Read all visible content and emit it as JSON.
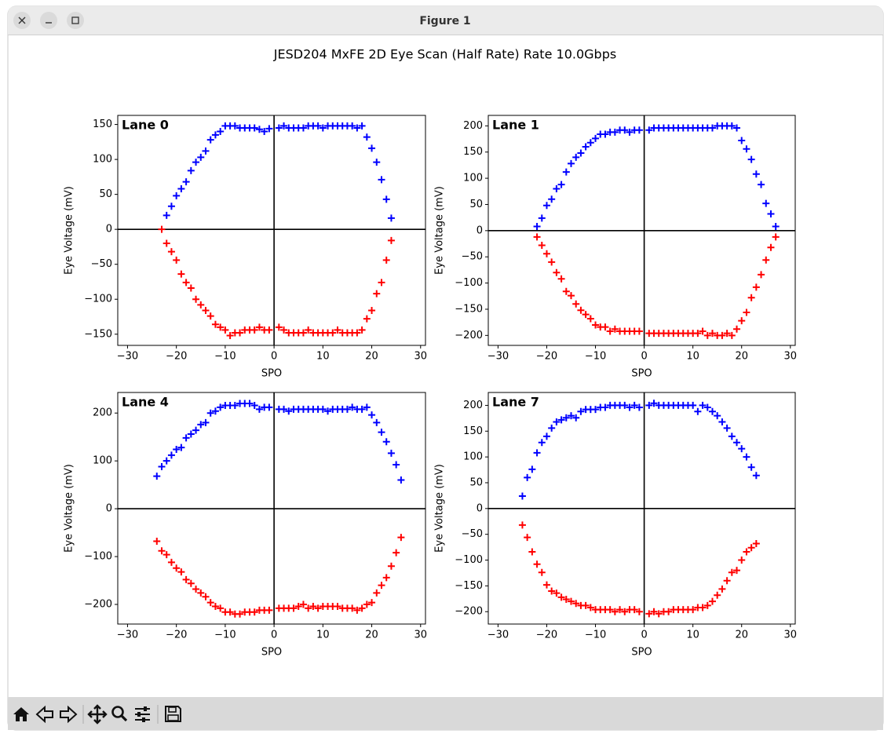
{
  "window": {
    "title": "Figure 1"
  },
  "title": "JESD204 MxFE 2D Eye Scan (Half Rate) Rate 10.0Gbps",
  "chart_data": [
    {
      "type": "scatter",
      "title": "Lane 0",
      "xlabel": "SPO",
      "ylabel": "Eye Voltage (mV)",
      "marker": "+",
      "zero_lines": true,
      "xlim": [
        -32,
        31
      ],
      "ylim": [
        -166,
        163
      ],
      "xticks": [
        {
          "value": -30,
          "label": "−30"
        },
        {
          "value": -20,
          "label": "−20"
        },
        {
          "value": -10,
          "label": "−10"
        },
        0,
        10,
        20,
        30
      ],
      "yticks": [
        {
          "value": -150,
          "label": "−150"
        },
        {
          "value": -100,
          "label": "−100"
        },
        {
          "value": -50,
          "label": "−50"
        },
        0,
        50,
        100,
        150
      ],
      "series": [
        {
          "color": "#0000ff",
          "x": [
            -22,
            -21,
            -20,
            -19,
            -18,
            -17,
            -16,
            -15,
            -14,
            -13,
            -12,
            -11,
            -10,
            -9,
            -8,
            -7,
            -6,
            -5,
            -4,
            -3,
            -2,
            -1,
            1,
            2,
            3,
            4,
            5,
            6,
            7,
            8,
            9,
            10,
            11,
            12,
            13,
            14,
            15,
            16,
            17,
            18,
            19,
            20,
            21,
            22,
            23,
            24
          ],
          "values": [
            20,
            33,
            48,
            58,
            68,
            84,
            96,
            103,
            112,
            128,
            135,
            140,
            148,
            148,
            148,
            145,
            145,
            145,
            145,
            143,
            140,
            144,
            145,
            148,
            145,
            145,
            145,
            145,
            148,
            148,
            148,
            145,
            148,
            148,
            148,
            148,
            148,
            148,
            145,
            148,
            132,
            116,
            96,
            71,
            43,
            16
          ]
        },
        {
          "color": "#ff0000",
          "x": [
            -23,
            -22,
            -21,
            -20,
            -19,
            -18,
            -17,
            -16,
            -15,
            -14,
            -13,
            -12,
            -11,
            -10,
            -9,
            -8,
            -7,
            -6,
            -5,
            -4,
            -3,
            -2,
            -1,
            1,
            2,
            3,
            4,
            5,
            6,
            7,
            8,
            9,
            10,
            11,
            12,
            13,
            14,
            15,
            16,
            17,
            18,
            19,
            20,
            21,
            22,
            23,
            24
          ],
          "values": [
            0,
            -20,
            -32,
            -44,
            -64,
            -76,
            -84,
            -100,
            -108,
            -116,
            -124,
            -136,
            -140,
            -144,
            -152,
            -148,
            -148,
            -144,
            -144,
            -144,
            -140,
            -144,
            -144,
            -140,
            -144,
            -148,
            -148,
            -148,
            -148,
            -144,
            -148,
            -148,
            -148,
            -148,
            -148,
            -144,
            -148,
            -148,
            -148,
            -148,
            -144,
            -128,
            -116,
            -92,
            -76,
            -44,
            -16
          ]
        }
      ]
    },
    {
      "type": "scatter",
      "title": "Lane 1",
      "xlabel": "SPO",
      "ylabel": "Eye Voltage (mV)",
      "marker": "+",
      "zero_lines": true,
      "xlim": [
        -32,
        31
      ],
      "ylim": [
        -219,
        220
      ],
      "xticks": [
        {
          "value": -30,
          "label": "−30"
        },
        {
          "value": -20,
          "label": "−20"
        },
        {
          "value": -10,
          "label": "−10"
        },
        0,
        10,
        20,
        30
      ],
      "yticks": [
        {
          "value": -200,
          "label": "−200"
        },
        {
          "value": -150,
          "label": "−150"
        },
        {
          "value": -100,
          "label": "−100"
        },
        {
          "value": -50,
          "label": "−50"
        },
        0,
        50,
        100,
        150,
        200
      ],
      "series": [
        {
          "color": "#0000ff",
          "x": [
            -22,
            -21,
            -20,
            -19,
            -18,
            -17,
            -16,
            -15,
            -14,
            -13,
            -12,
            -11,
            -10,
            -9,
            -8,
            -7,
            -6,
            -5,
            -4,
            -3,
            -2,
            -1,
            1,
            2,
            3,
            4,
            5,
            6,
            7,
            8,
            9,
            10,
            11,
            12,
            13,
            14,
            15,
            16,
            17,
            18,
            19,
            20,
            21,
            22,
            23,
            24,
            25,
            26,
            27
          ],
          "values": [
            8,
            24,
            48,
            60,
            80,
            88,
            112,
            128,
            140,
            148,
            160,
            168,
            176,
            184,
            184,
            188,
            188,
            192,
            192,
            188,
            192,
            192,
            192,
            196,
            196,
            196,
            196,
            196,
            196,
            196,
            196,
            196,
            196,
            196,
            196,
            196,
            200,
            200,
            200,
            200,
            196,
            172,
            156,
            136,
            108,
            88,
            52,
            32,
            8
          ]
        },
        {
          "color": "#ff0000",
          "x": [
            -22,
            -21,
            -20,
            -19,
            -18,
            -17,
            -16,
            -15,
            -14,
            -13,
            -12,
            -11,
            -10,
            -9,
            -8,
            -7,
            -6,
            -5,
            -4,
            -3,
            -2,
            -1,
            1,
            2,
            3,
            4,
            5,
            6,
            7,
            8,
            9,
            10,
            11,
            12,
            13,
            14,
            15,
            16,
            17,
            18,
            19,
            20,
            21,
            22,
            23,
            24,
            25,
            26,
            27
          ],
          "values": [
            -12,
            -28,
            -44,
            -60,
            -80,
            -92,
            -116,
            -124,
            -140,
            -152,
            -160,
            -168,
            -180,
            -184,
            -184,
            -192,
            -188,
            -192,
            -192,
            -192,
            -192,
            -192,
            -196,
            -196,
            -196,
            -196,
            -196,
            -196,
            -196,
            -196,
            -196,
            -196,
            -196,
            -192,
            -200,
            -196,
            -200,
            -200,
            -196,
            -200,
            -188,
            -172,
            -156,
            -128,
            -108,
            -84,
            -56,
            -32,
            -12
          ]
        }
      ]
    },
    {
      "type": "scatter",
      "title": "Lane 4",
      "xlabel": "SPO",
      "ylabel": "Eye Voltage (mV)",
      "marker": "+",
      "zero_lines": true,
      "xlim": [
        -32,
        31
      ],
      "ylim": [
        -241,
        243
      ],
      "xticks": [
        {
          "value": -30,
          "label": "−30"
        },
        {
          "value": -20,
          "label": "−20"
        },
        {
          "value": -10,
          "label": "−10"
        },
        0,
        10,
        20,
        30
      ],
      "yticks": [
        {
          "value": -200,
          "label": "−200"
        },
        {
          "value": -100,
          "label": "−100"
        },
        0,
        100,
        200
      ],
      "series": [
        {
          "color": "#0000ff",
          "x": [
            -24,
            -23,
            -22,
            -21,
            -20,
            -19,
            -18,
            -17,
            -16,
            -15,
            -14,
            -13,
            -12,
            -11,
            -10,
            -9,
            -8,
            -7,
            -6,
            -5,
            -4,
            -3,
            -2,
            -1,
            1,
            2,
            3,
            4,
            5,
            6,
            7,
            8,
            9,
            10,
            11,
            12,
            13,
            14,
            15,
            16,
            17,
            18,
            19,
            20,
            21,
            22,
            23,
            24,
            25,
            26
          ],
          "values": [
            68,
            88,
            100,
            112,
            124,
            128,
            148,
            156,
            164,
            176,
            180,
            200,
            204,
            212,
            216,
            216,
            216,
            220,
            220,
            220,
            216,
            208,
            212,
            212,
            208,
            208,
            204,
            208,
            208,
            208,
            208,
            208,
            208,
            208,
            204,
            208,
            208,
            208,
            208,
            212,
            208,
            208,
            212,
            196,
            180,
            160,
            140,
            116,
            92,
            60
          ]
        },
        {
          "color": "#ff0000",
          "x": [
            -24,
            -23,
            -22,
            -21,
            -20,
            -19,
            -18,
            -17,
            -16,
            -15,
            -14,
            -13,
            -12,
            -11,
            -10,
            -9,
            -8,
            -7,
            -6,
            -5,
            -4,
            -3,
            -2,
            -1,
            1,
            2,
            3,
            4,
            5,
            6,
            7,
            8,
            9,
            10,
            11,
            12,
            13,
            14,
            15,
            16,
            17,
            18,
            19,
            20,
            21,
            22,
            23,
            24,
            25,
            26
          ],
          "values": [
            -68,
            -88,
            -96,
            -112,
            -124,
            -132,
            -148,
            -156,
            -168,
            -176,
            -184,
            -196,
            -204,
            -208,
            -216,
            -216,
            -220,
            -220,
            -216,
            -216,
            -216,
            -212,
            -212,
            -212,
            -208,
            -208,
            -208,
            -208,
            -204,
            -200,
            -208,
            -204,
            -208,
            -204,
            -204,
            -204,
            -204,
            -208,
            -208,
            -208,
            -212,
            -208,
            -200,
            -196,
            -176,
            -160,
            -144,
            -120,
            -92,
            -60
          ]
        }
      ]
    },
    {
      "type": "scatter",
      "title": "Lane 7",
      "xlabel": "SPO",
      "ylabel": "Eye Voltage (mV)",
      "marker": "+",
      "zero_lines": true,
      "xlim": [
        -32,
        31
      ],
      "ylim": [
        -224,
        225
      ],
      "xticks": [
        {
          "value": -30,
          "label": "−30"
        },
        {
          "value": -20,
          "label": "−20"
        },
        {
          "value": -10,
          "label": "−10"
        },
        0,
        10,
        20,
        30
      ],
      "yticks": [
        {
          "value": -200,
          "label": "−200"
        },
        {
          "value": -150,
          "label": "−150"
        },
        {
          "value": -100,
          "label": "−100"
        },
        {
          "value": -50,
          "label": "−50"
        },
        0,
        50,
        100,
        150,
        200
      ],
      "series": [
        {
          "color": "#0000ff",
          "x": [
            -25,
            -24,
            -23,
            -22,
            -21,
            -20,
            -19,
            -18,
            -17,
            -16,
            -15,
            -14,
            -13,
            -12,
            -11,
            -10,
            -9,
            -8,
            -7,
            -6,
            -5,
            -4,
            -3,
            -2,
            -1,
            1,
            2,
            3,
            4,
            5,
            6,
            7,
            8,
            9,
            10,
            11,
            12,
            13,
            14,
            15,
            16,
            17,
            18,
            19,
            20,
            21,
            22,
            23
          ],
          "values": [
            24,
            60,
            76,
            108,
            128,
            140,
            156,
            168,
            172,
            176,
            180,
            176,
            188,
            192,
            192,
            192,
            196,
            196,
            200,
            200,
            200,
            200,
            196,
            200,
            196,
            200,
            204,
            200,
            200,
            200,
            200,
            200,
            200,
            200,
            200,
            188,
            200,
            196,
            188,
            180,
            168,
            156,
            140,
            128,
            116,
            100,
            80,
            64
          ]
        },
        {
          "color": "#ff0000",
          "x": [
            -25,
            -24,
            -23,
            -22,
            -21,
            -20,
            -19,
            -18,
            -17,
            -16,
            -15,
            -14,
            -13,
            -12,
            -11,
            -10,
            -9,
            -8,
            -7,
            -6,
            -5,
            -4,
            -3,
            -2,
            -1,
            1,
            2,
            3,
            4,
            5,
            6,
            7,
            8,
            9,
            10,
            11,
            12,
            13,
            14,
            15,
            16,
            17,
            18,
            19,
            20,
            21,
            22,
            23
          ],
          "values": [
            -32,
            -56,
            -84,
            -108,
            -124,
            -148,
            -160,
            -164,
            -172,
            -176,
            -180,
            -184,
            -188,
            -188,
            -192,
            -196,
            -196,
            -196,
            -196,
            -200,
            -196,
            -200,
            -196,
            -196,
            -200,
            -204,
            -200,
            -204,
            -200,
            -200,
            -196,
            -196,
            -196,
            -196,
            -196,
            -192,
            -192,
            -188,
            -180,
            -168,
            -156,
            -140,
            -124,
            -120,
            -100,
            -84,
            -76,
            -68
          ]
        }
      ]
    }
  ]
}
